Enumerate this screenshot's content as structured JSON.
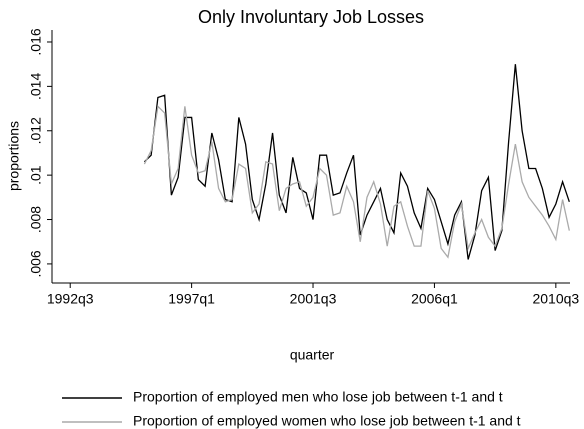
{
  "chart_data": {
    "type": "line",
    "title": "Only Involuntary Job Losses",
    "x_label": "quarter",
    "y_label": "proportions",
    "x": [
      141,
      142,
      143,
      144,
      145,
      146,
      147,
      148,
      149,
      150,
      151,
      152,
      153,
      154,
      155,
      156,
      157,
      158,
      159,
      160,
      161,
      162,
      163,
      164,
      165,
      166,
      167,
      168,
      169,
      170,
      171,
      172,
      173,
      174,
      175,
      176,
      177,
      178,
      179,
      180,
      181,
      182,
      183,
      184,
      185,
      186,
      187,
      188,
      189,
      190,
      191,
      192,
      193,
      194,
      195,
      196,
      197,
      198,
      199,
      200,
      201,
      202,
      203,
      204
    ],
    "series": [
      {
        "name": "Proportion of employed men who lose job between t-1 and t",
        "color": "#000000",
        "values": [
          0.0106,
          0.0109,
          0.0135,
          0.0136,
          0.0091,
          0.0099,
          0.0126,
          0.0126,
          0.0098,
          0.0095,
          0.0119,
          0.0107,
          0.0089,
          0.0088,
          0.0126,
          0.0114,
          0.0089,
          0.008,
          0.0096,
          0.0119,
          0.0091,
          0.0083,
          0.0108,
          0.0094,
          0.0092,
          0.008,
          0.0109,
          0.0109,
          0.0091,
          0.0092,
          0.0101,
          0.0109,
          0.0073,
          0.0082,
          0.0088,
          0.0094,
          0.008,
          0.0074,
          0.0101,
          0.0095,
          0.0083,
          0.0076,
          0.0094,
          0.0089,
          0.0079,
          0.0069,
          0.0082,
          0.0088,
          0.0062,
          0.0073,
          0.0093,
          0.0099,
          0.0066,
          0.0075,
          0.0115,
          0.015,
          0.012,
          0.0103,
          0.0103,
          0.0094,
          0.0081,
          0.0087,
          0.0097,
          0.0088
        ]
      },
      {
        "name": "Proportion of employed women who lose job between t-1 and t",
        "color": "#aaaaaa",
        "values": [
          0.0105,
          0.0111,
          0.0131,
          0.0128,
          0.0096,
          0.0103,
          0.0131,
          0.0109,
          0.0101,
          0.0102,
          0.0115,
          0.0094,
          0.0088,
          0.0089,
          0.0105,
          0.0103,
          0.0083,
          0.0087,
          0.0106,
          0.0105,
          0.0084,
          0.0094,
          0.0096,
          0.0097,
          0.0086,
          0.009,
          0.0103,
          0.01,
          0.0082,
          0.0083,
          0.0095,
          0.0088,
          0.007,
          0.009,
          0.0097,
          0.0087,
          0.0068,
          0.0086,
          0.0088,
          0.0077,
          0.0068,
          0.0068,
          0.0093,
          0.0085,
          0.0067,
          0.0063,
          0.0079,
          0.0087,
          0.0067,
          0.0074,
          0.008,
          0.0072,
          0.0068,
          0.0076,
          0.0096,
          0.0114,
          0.0097,
          0.009,
          0.0086,
          0.0082,
          0.0077,
          0.0071,
          0.0089,
          0.0075
        ]
      }
    ],
    "xlim": [
      127.3,
      204.1
    ],
    "xticks": [
      {
        "value": 130,
        "label": "1992q3"
      },
      {
        "value": 148,
        "label": "1997q1"
      },
      {
        "value": 166,
        "label": "2001q3"
      },
      {
        "value": 184,
        "label": "2006q1"
      },
      {
        "value": 202,
        "label": "2010q3"
      }
    ],
    "ylim": [
      0.00514,
      0.01654
    ],
    "yticks": [
      {
        "value": 0.006,
        "label": ".006"
      },
      {
        "value": 0.008,
        "label": ".008"
      },
      {
        "value": 0.01,
        "label": ".01"
      },
      {
        "value": 0.012,
        "label": ".012"
      },
      {
        "value": 0.014,
        "label": ".014"
      },
      {
        "value": 0.016,
        "label": ".016"
      }
    ],
    "grid": false
  }
}
